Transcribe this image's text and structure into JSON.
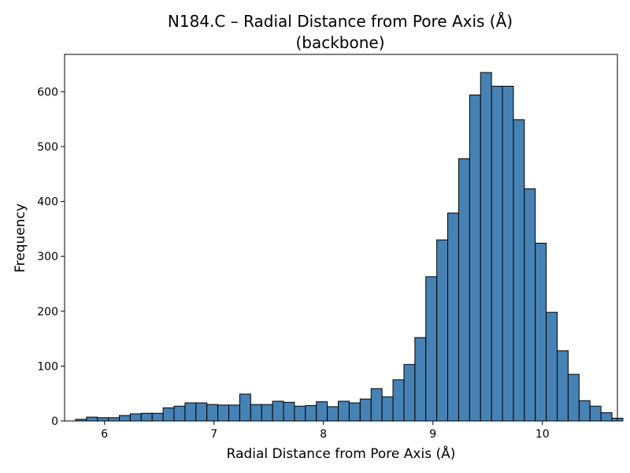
{
  "chart_data": {
    "type": "bar",
    "title_line1": "N184.C – Radial Distance from Pore Axis (Å)",
    "title_line2": "(backbone)",
    "xlabel": "Radial Distance from Pore Axis (Å)",
    "ylabel": "Frequency",
    "xlim": [
      5.635,
      10.685
    ],
    "ylim": [
      0,
      668
    ],
    "xticks": [
      6,
      7,
      8,
      9,
      10
    ],
    "xtick_labels": [
      "6",
      "7",
      "8",
      "9",
      "10"
    ],
    "yticks": [
      0,
      100,
      200,
      300,
      400,
      500,
      600
    ],
    "ytick_labels": [
      "0",
      "100",
      "200",
      "300",
      "400",
      "500",
      "600"
    ],
    "bin_start": 5.735,
    "bin_width": 0.1,
    "values": [
      3,
      7,
      6,
      6,
      10,
      13,
      14,
      14,
      24,
      27,
      33,
      33,
      30,
      29,
      29,
      49,
      30,
      30,
      36,
      34,
      27,
      28,
      35,
      26,
      36,
      33,
      40,
      59,
      44,
      75,
      103,
      152,
      263,
      330,
      379,
      478,
      594,
      635,
      610,
      610,
      549,
      423,
      324,
      198,
      128,
      85,
      37,
      27,
      15,
      5
    ],
    "bar_color": "#4682b4",
    "edge_color": "#000000"
  }
}
